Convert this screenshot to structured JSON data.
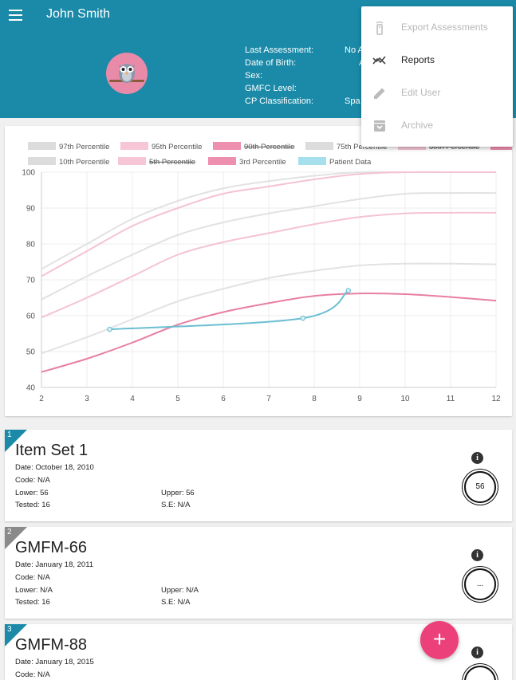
{
  "header": {
    "user_name": "John Smith",
    "info_labels": [
      "Last Assessment:",
      "Date of Birth:",
      "Sex:",
      "GMFC Level:",
      "CP Classification:"
    ],
    "info_values": [
      "No A",
      "A",
      "",
      "",
      "Spa"
    ]
  },
  "menu": {
    "items": [
      {
        "label": "Export Assessments",
        "icon": "remote-icon",
        "enabled": false
      },
      {
        "label": "Reports",
        "icon": "trending-icon",
        "enabled": true
      },
      {
        "label": "Edit User",
        "icon": "pencil-icon",
        "enabled": false
      },
      {
        "label": "Archive",
        "icon": "archive-icon",
        "enabled": false
      }
    ]
  },
  "chart_data": {
    "type": "line",
    "xlim": [
      2,
      12
    ],
    "ylim": [
      40,
      100
    ],
    "x_ticks": [
      2,
      3,
      4,
      5,
      6,
      7,
      8,
      9,
      10,
      11,
      12
    ],
    "y_ticks": [
      40,
      50,
      60,
      70,
      80,
      90,
      100
    ],
    "grid": true,
    "legend_position": "top",
    "legend": [
      {
        "label": "97th Percentile",
        "color": "#dcdcdc",
        "hidden": false
      },
      {
        "label": "95th Percentile",
        "color": "#f7c6d6",
        "hidden": false
      },
      {
        "label": "90th Percentile",
        "color": "#ef8fb0",
        "hidden": true
      },
      {
        "label": "75th Percentile",
        "color": "#dcdcdc",
        "hidden": false
      },
      {
        "label": "50th Percentile",
        "color": "#f7c6d6",
        "hidden": true
      },
      {
        "label": "25th Percentile",
        "color": "#ef8fb0",
        "hidden": true
      },
      {
        "label": "10th Percentile",
        "color": "#dcdcdc",
        "hidden": false
      },
      {
        "label": "5th Percentile",
        "color": "#f7c6d6",
        "hidden": true
      },
      {
        "label": "3rd Percentile",
        "color": "#ef8fb0",
        "hidden": false
      },
      {
        "label": "Patient Data",
        "color": "#a6e0ec",
        "hidden": false
      }
    ],
    "series": [
      {
        "name": "97th Percentile",
        "color": "#e2e2e2",
        "x": [
          2,
          3,
          4,
          5,
          6,
          7,
          8,
          9,
          10,
          11,
          12
        ],
        "y": [
          73,
          80,
          87,
          92,
          95.5,
          97.5,
          99,
          100,
          100,
          100,
          100
        ]
      },
      {
        "name": "95th Percentile",
        "color": "#f5c3d3",
        "x": [
          2,
          3,
          4,
          5,
          6,
          7,
          8,
          9,
          10,
          11,
          12
        ],
        "y": [
          71,
          78,
          85,
          90,
          94,
          96,
          98,
          99.5,
          100,
          100,
          100
        ]
      },
      {
        "name": "75th Percentile",
        "color": "#e2e2e2",
        "x": [
          2,
          3,
          4,
          5,
          6,
          7,
          8,
          9,
          10,
          11,
          12
        ],
        "y": [
          64.5,
          71,
          77,
          82.5,
          86,
          88.5,
          90.5,
          92.5,
          94,
          94.2,
          94.2
        ]
      },
      {
        "name": "50th Percentile",
        "color": "#f5c3d3",
        "x": [
          2,
          3,
          4,
          5,
          6,
          7,
          8,
          9,
          10,
          11,
          12
        ],
        "y": [
          59.5,
          65,
          71,
          77,
          80.5,
          83,
          85.5,
          87.5,
          88.5,
          88.7,
          88.7
        ]
      },
      {
        "name": "10th Percentile",
        "color": "#e2e2e2",
        "x": [
          2,
          3,
          4,
          5,
          6,
          7,
          8,
          9,
          10,
          11,
          12
        ],
        "y": [
          49.5,
          54,
          59,
          64,
          67.5,
          70.5,
          72.5,
          74,
          74.5,
          74.5,
          74.3
        ]
      },
      {
        "name": "3rd Percentile",
        "color": "#e87ea4",
        "x": [
          2,
          3,
          4,
          5,
          6,
          7,
          8,
          9,
          10,
          11,
          12
        ],
        "y": [
          44.3,
          48,
          52.5,
          57.5,
          61,
          63.5,
          65.5,
          66.2,
          66,
          65.2,
          64.2
        ]
      },
      {
        "name": "Patient Data",
        "color": "#6bbfd1",
        "x": [
          3.5,
          7.75,
          8.75
        ],
        "y": [
          56.2,
          59.3,
          67
        ]
      }
    ]
  },
  "items": [
    {
      "number": "1",
      "title": "Item Set 1",
      "date": "Date: October 18, 2010",
      "code": "Code: N/A",
      "lower": "Lower: 56",
      "upper": "Upper: 56",
      "tested": "Tested: 16",
      "se": "S.E: N/A",
      "score": "56",
      "corner_color": "#1a8aa8"
    },
    {
      "number": "2",
      "title": "GMFM-66",
      "date": "Date: January 18, 2011",
      "code": "Code: N/A",
      "lower": "Lower: N/A",
      "upper": "Upper: N/A",
      "tested": "Tested: 16",
      "se": "S.E: N/A",
      "score": "...",
      "corner_color": "#8a8a8a"
    },
    {
      "number": "3",
      "title": "GMFM-88",
      "date": "Date: January 18, 2015",
      "code": "Code: N/A",
      "lower": "",
      "upper": "",
      "tested": "",
      "se": "",
      "score": "",
      "corner_color": "#1a8aa8"
    }
  ],
  "fab": {
    "label": "+"
  }
}
